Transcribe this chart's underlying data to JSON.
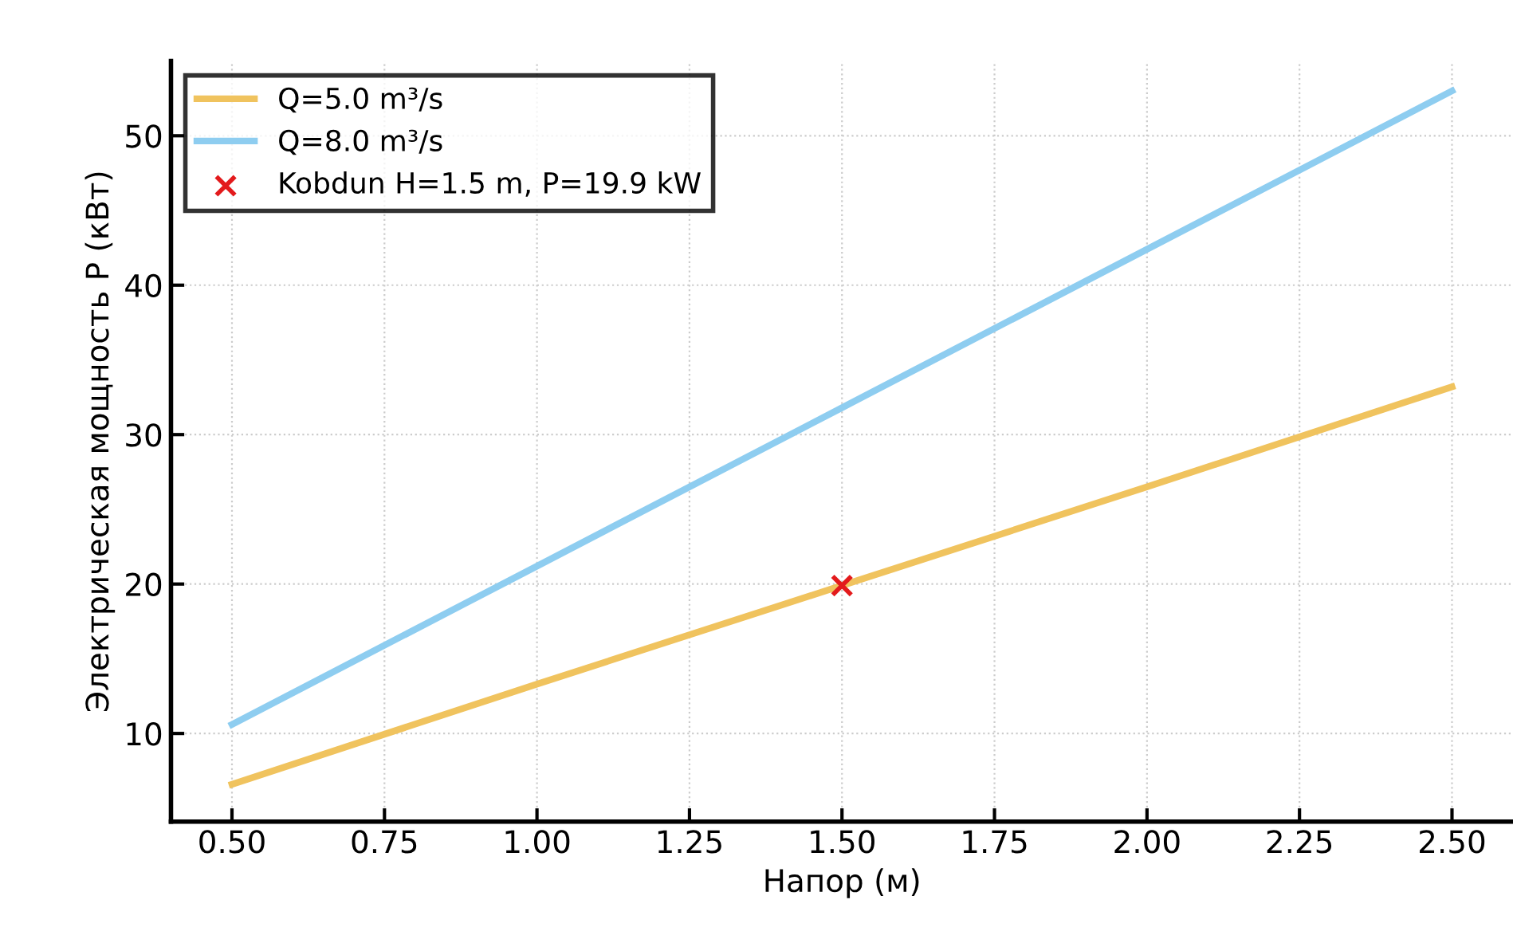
{
  "chart_data": {
    "type": "line",
    "xlabel": "Напор (м)",
    "ylabel": "Электрическая мощность P (кВт)",
    "x": [
      0.5,
      1.0,
      1.5,
      2.0,
      2.5
    ],
    "series": [
      {
        "name": "Q=5.0 m³/s",
        "color": "#f0c35e",
        "values": [
          6.6,
          13.3,
          19.9,
          26.5,
          33.2
        ]
      },
      {
        "name": "Q=8.0 m³/s",
        "color": "#8ecdf0",
        "values": [
          10.6,
          21.2,
          31.8,
          42.4,
          53.0
        ]
      },
      {
        "name": "Kobdun H=1.5 m, P=19.9 kW",
        "type": "scatter",
        "marker": "cross",
        "color": "#e31a1c",
        "x": [
          1.5
        ],
        "values": [
          19.9
        ]
      }
    ],
    "xlim": [
      0.4,
      2.6
    ],
    "ylim": [
      4.1,
      55
    ],
    "xticks": [
      {
        "value": 0.5,
        "label": "0.50"
      },
      {
        "value": 0.75,
        "label": "0.75"
      },
      {
        "value": 1.0,
        "label": "1.00"
      },
      {
        "value": 1.25,
        "label": "1.25"
      },
      {
        "value": 1.5,
        "label": "1.50"
      },
      {
        "value": 1.75,
        "label": "1.75"
      },
      {
        "value": 2.0,
        "label": "2.00"
      },
      {
        "value": 2.25,
        "label": "2.25"
      },
      {
        "value": 2.5,
        "label": "2.50"
      }
    ],
    "yticks": [
      10,
      20,
      30,
      40,
      50
    ],
    "grid": true,
    "legend": "top left"
  }
}
